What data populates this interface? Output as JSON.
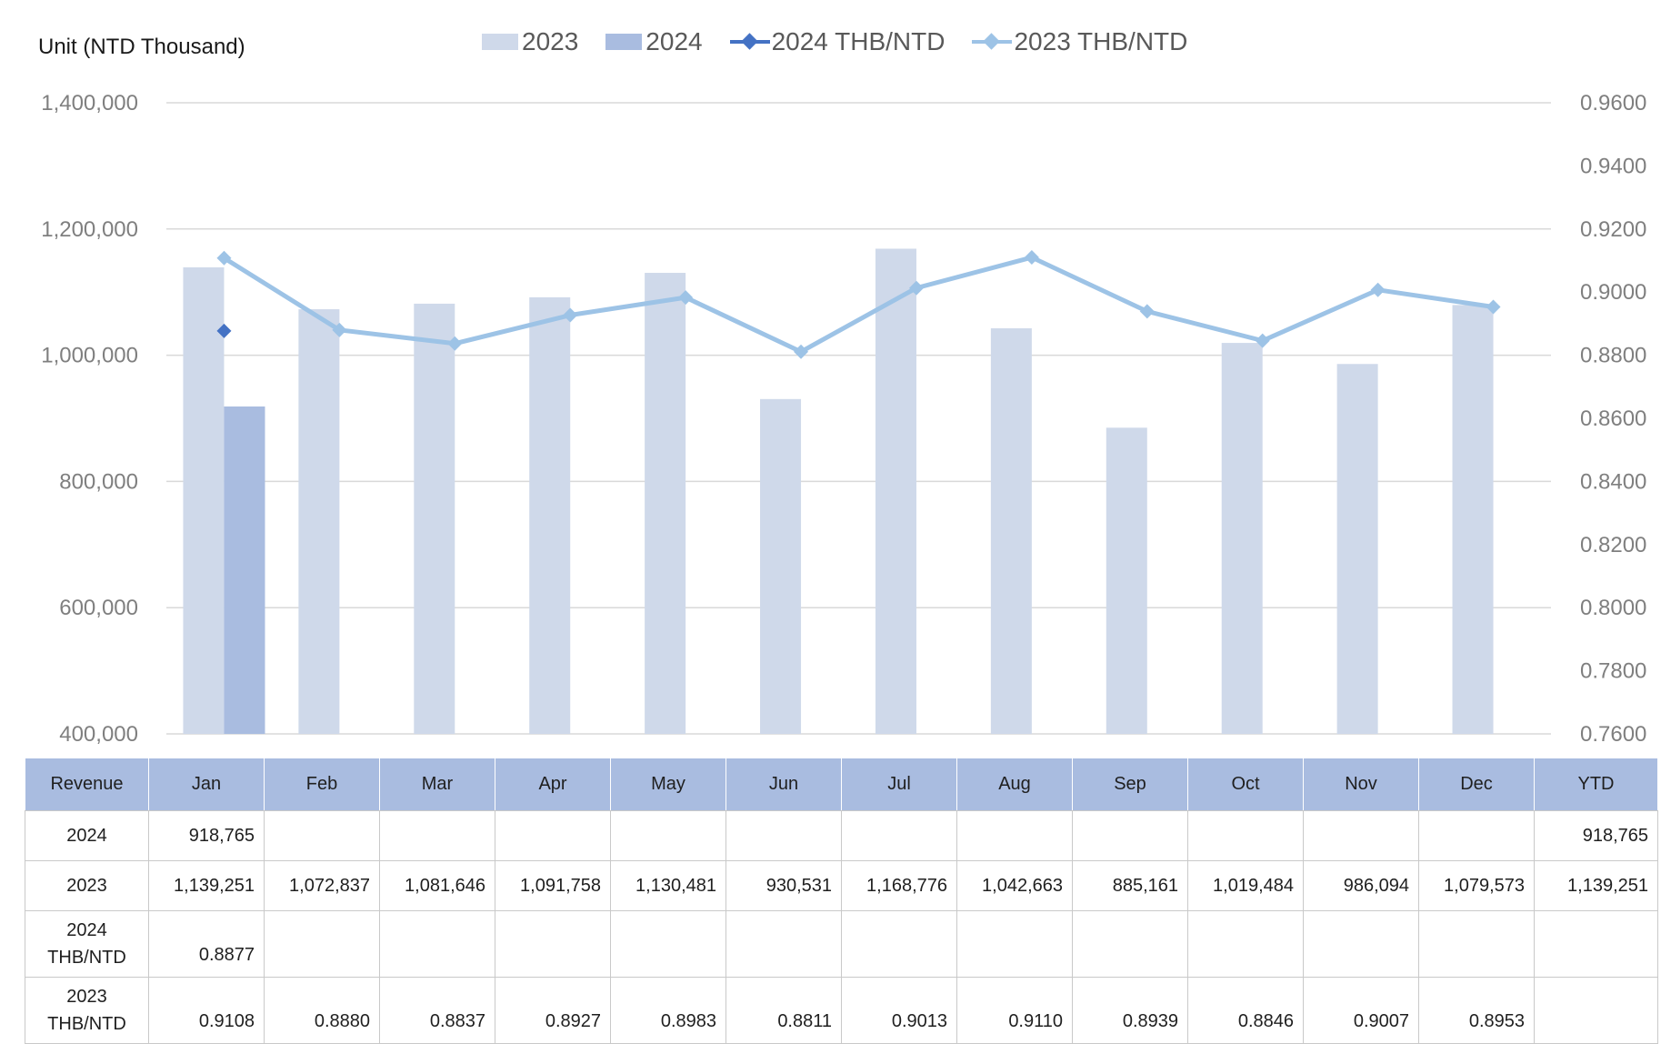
{
  "unit_label": "Unit (NTD  Thousand)",
  "legend": [
    {
      "label": "2023",
      "kind": "box",
      "color": "#cfd9ea"
    },
    {
      "label": "2024",
      "kind": "box",
      "color": "#a9bce0"
    },
    {
      "label": "2024 THB/NTD",
      "kind": "line",
      "color": "#4472c4"
    },
    {
      "label": "2023 THB/NTD",
      "kind": "line",
      "color": "#9dc3e6"
    }
  ],
  "chart_data": {
    "type": "bar",
    "categories": [
      "Jan",
      "Feb",
      "Mar",
      "Apr",
      "May",
      "Jun",
      "Jul",
      "Aug",
      "Sep",
      "Oct",
      "Nov",
      "Dec"
    ],
    "series": [
      {
        "name": "2023",
        "type": "bar",
        "axis": "left",
        "color": "#cfd9ea",
        "values": [
          1139251,
          1072837,
          1081646,
          1091758,
          1130481,
          930531,
          1168776,
          1042663,
          885161,
          1019484,
          986094,
          1079573
        ]
      },
      {
        "name": "2024",
        "type": "bar",
        "axis": "left",
        "color": "#a9bce0",
        "values": [
          918765,
          null,
          null,
          null,
          null,
          null,
          null,
          null,
          null,
          null,
          null,
          null
        ]
      },
      {
        "name": "2024 THB/NTD",
        "type": "line",
        "axis": "right",
        "color": "#4472c4",
        "values": [
          0.8877,
          null,
          null,
          null,
          null,
          null,
          null,
          null,
          null,
          null,
          null,
          null
        ]
      },
      {
        "name": "2023 THB/NTD",
        "type": "line",
        "axis": "right",
        "color": "#9dc3e6",
        "values": [
          0.9108,
          0.888,
          0.8837,
          0.8927,
          0.8983,
          0.8811,
          0.9013,
          0.911,
          0.8939,
          0.8846,
          0.9007,
          0.8953
        ]
      }
    ],
    "y_left": {
      "min": 400000,
      "max": 1400000,
      "ticks": [
        "400,000",
        "600,000",
        "800,000",
        "1,000,000",
        "1,200,000",
        "1,400,000"
      ]
    },
    "y_right": {
      "min": 0.76,
      "max": 0.96,
      "ticks": [
        "0.7600",
        "0.7800",
        "0.8000",
        "0.8200",
        "0.8400",
        "0.8600",
        "0.8800",
        "0.9000",
        "0.9200",
        "0.9400",
        "0.9600"
      ]
    },
    "grid": true,
    "legend_position": "top"
  },
  "table": {
    "headers": [
      "Revenue",
      "Jan",
      "Feb",
      "Mar",
      "Apr",
      "May",
      "Jun",
      "Jul",
      "Aug",
      "Sep",
      "Oct",
      "Nov",
      "Dec",
      "YTD"
    ],
    "rows": [
      {
        "label": "2024",
        "cells": [
          "918,765",
          "",
          "",
          "",
          "",
          "",
          "",
          "",
          "",
          "",
          "",
          "",
          "918,765"
        ]
      },
      {
        "label": "2023",
        "cells": [
          "1,139,251",
          "1,072,837",
          "1,081,646",
          "1,091,758",
          "1,130,481",
          "930,531",
          "1,168,776",
          "1,042,663",
          "885,161",
          "1,019,484",
          "986,094",
          "1,079,573",
          "1,139,251"
        ]
      },
      {
        "label": "2024 THB/NTD",
        "cells": [
          "0.8877",
          "",
          "",
          "",
          "",
          "",
          "",
          "",
          "",
          "",
          "",
          "",
          ""
        ]
      },
      {
        "label": "2023 THB/NTD",
        "cells": [
          "0.9108",
          "0.8880",
          "0.8837",
          "0.8927",
          "0.8983",
          "0.8811",
          "0.9013",
          "0.9110",
          "0.8939",
          "0.8846",
          "0.9007",
          "0.8953",
          ""
        ]
      }
    ]
  }
}
